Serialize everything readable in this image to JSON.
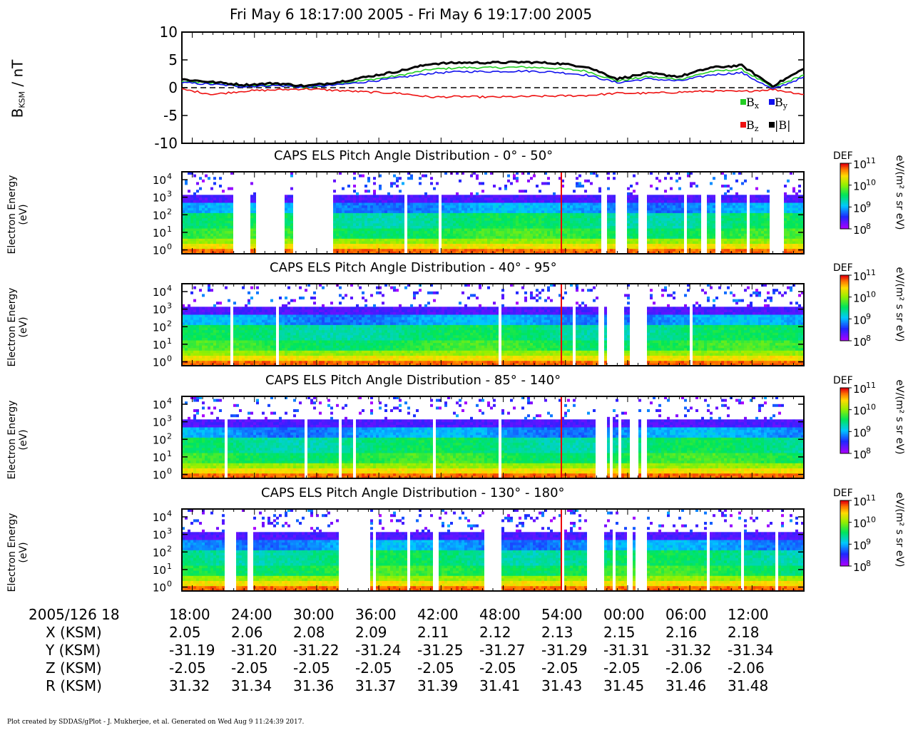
{
  "title": "Fri May 6 18:17:00 2005 - Fri May 6 19:17:00 2005",
  "colors": {
    "bx": "#22cc22",
    "by": "#1010ee",
    "bz": "#ee1111",
    "bmag": "#000000"
  },
  "mag_panel": {
    "ylabel_main": "B",
    "ylabel_sub": "KSM",
    "ylabel_unit": " / nT",
    "legend": {
      "bx": {
        "main": "B",
        "sub": "x"
      },
      "by": {
        "main": "B",
        "sub": "y"
      },
      "bz": {
        "main": "B",
        "sub": "z"
      },
      "bmag": {
        "main": "|B|",
        "sub": ""
      }
    }
  },
  "spectrogram_ylabel": [
    "Electron Energy",
    "(eV)"
  ],
  "colorbar": {
    "label": "DEF",
    "units": "eV/(m² s sr eV)",
    "tick_exponents": [
      11,
      10,
      9,
      8
    ]
  },
  "ephemeris": {
    "header": "2005/126 18",
    "rows": [
      {
        "label": "X (KSM)",
        "values": [
          "2.05",
          "2.06",
          "2.08",
          "2.09",
          "2.11",
          "2.12",
          "2.13",
          "2.15",
          "2.16",
          "2.18"
        ]
      },
      {
        "label": "Y (KSM)",
        "values": [
          "-31.19",
          "-31.20",
          "-31.22",
          "-31.24",
          "-31.25",
          "-31.27",
          "-31.29",
          "-31.31",
          "-31.32",
          "-31.34"
        ]
      },
      {
        "label": "Z (KSM)",
        "values": [
          "-2.05",
          "-2.05",
          "-2.05",
          "-2.05",
          "-2.05",
          "-2.05",
          "-2.05",
          "-2.05",
          "-2.06",
          "-2.06"
        ]
      },
      {
        "label": "R (KSM)",
        "values": [
          "31.32",
          "31.34",
          "31.36",
          "31.37",
          "31.39",
          "31.41",
          "31.43",
          "31.45",
          "31.46",
          "31.48"
        ]
      }
    ]
  },
  "footer": "Plot created by SDDAS/gPlot - J. Mukherjee, et al.  Generated on Wed Aug 9 11:24:39 2017.",
  "chart_data": [
    {
      "type": "line",
      "title": "",
      "xlabel": "",
      "ylabel": "B_KSM / nT",
      "ylim": [
        -10,
        10
      ],
      "y_ticks": [
        10,
        5,
        0,
        -5,
        -10
      ],
      "x_tick_labels": [
        "18:00",
        "24:00",
        "30:00",
        "36:00",
        "42:00",
        "48:00",
        "54:00",
        "00:00",
        "06:00",
        "12:00"
      ],
      "x_minutes": [
        17,
        20,
        23,
        26,
        29,
        32,
        35,
        38,
        41,
        44,
        47,
        50,
        53,
        56,
        59,
        62,
        65,
        68,
        71,
        74,
        77
      ],
      "series": [
        {
          "name": "Bx",
          "key": "bx",
          "values": [
            1.1,
            0.8,
            0.3,
            0.5,
            0.0,
            0.7,
            1.4,
            2.2,
            3.3,
            3.6,
            3.6,
            3.7,
            3.5,
            3.0,
            1.2,
            2.0,
            1.5,
            2.9,
            3.3,
            0.0,
            2.3
          ]
        },
        {
          "name": "By",
          "key": "by",
          "values": [
            0.9,
            0.6,
            0.2,
            0.4,
            0.1,
            0.5,
            1.1,
            1.8,
            2.6,
            2.9,
            2.9,
            3.0,
            2.8,
            2.3,
            0.9,
            1.6,
            1.2,
            2.3,
            2.7,
            -0.3,
            1.9
          ]
        },
        {
          "name": "Bz",
          "key": "bz",
          "values": [
            -0.3,
            -1.2,
            -0.6,
            -0.4,
            -0.2,
            -0.5,
            -0.8,
            -1.0,
            -1.7,
            -1.6,
            -1.7,
            -1.6,
            -1.5,
            -1.4,
            -1.0,
            -1.0,
            -0.8,
            -0.6,
            -0.7,
            -0.3,
            -1.2
          ]
        },
        {
          "name": "|B|",
          "key": "bmag",
          "values": [
            1.5,
            1.0,
            0.5,
            0.8,
            0.3,
            1.0,
            2.0,
            3.0,
            4.3,
            4.5,
            4.5,
            4.6,
            4.4,
            3.8,
            1.6,
            2.6,
            2.0,
            3.6,
            4.0,
            0.3,
            3.4
          ]
        }
      ]
    },
    {
      "type": "heatmap",
      "title": "CAPS ELS Pitch Angle Distribution - 0° - 50°",
      "ylabel": "Electron Energy (eV)",
      "y_scale": "log",
      "ylim": [
        0.6,
        28000
      ],
      "y_ticks_exp": [
        0,
        1,
        2,
        3,
        4
      ],
      "colorscale_exp": [
        8,
        11
      ]
    },
    {
      "type": "heatmap",
      "title": "CAPS ELS Pitch Angle Distribution - 40° - 95°",
      "ylabel": "Electron Energy (eV)",
      "y_scale": "log",
      "ylim": [
        0.6,
        28000
      ],
      "y_ticks_exp": [
        0,
        1,
        2,
        3,
        4
      ],
      "colorscale_exp": [
        8,
        11
      ]
    },
    {
      "type": "heatmap",
      "title": "CAPS ELS Pitch Angle Distribution - 85° - 140°",
      "ylabel": "Electron Energy (eV)",
      "y_scale": "log",
      "ylim": [
        0.6,
        28000
      ],
      "y_ticks_exp": [
        0,
        1,
        2,
        3,
        4
      ],
      "colorscale_exp": [
        8,
        11
      ]
    },
    {
      "type": "heatmap",
      "title": "CAPS ELS Pitch Angle Distribution - 130° - 180°",
      "ylabel": "Electron Energy (eV)",
      "y_scale": "log",
      "ylim": [
        0.6,
        28000
      ],
      "y_ticks_exp": [
        0,
        1,
        2,
        3,
        4
      ],
      "colorscale_exp": [
        8,
        11
      ]
    }
  ]
}
